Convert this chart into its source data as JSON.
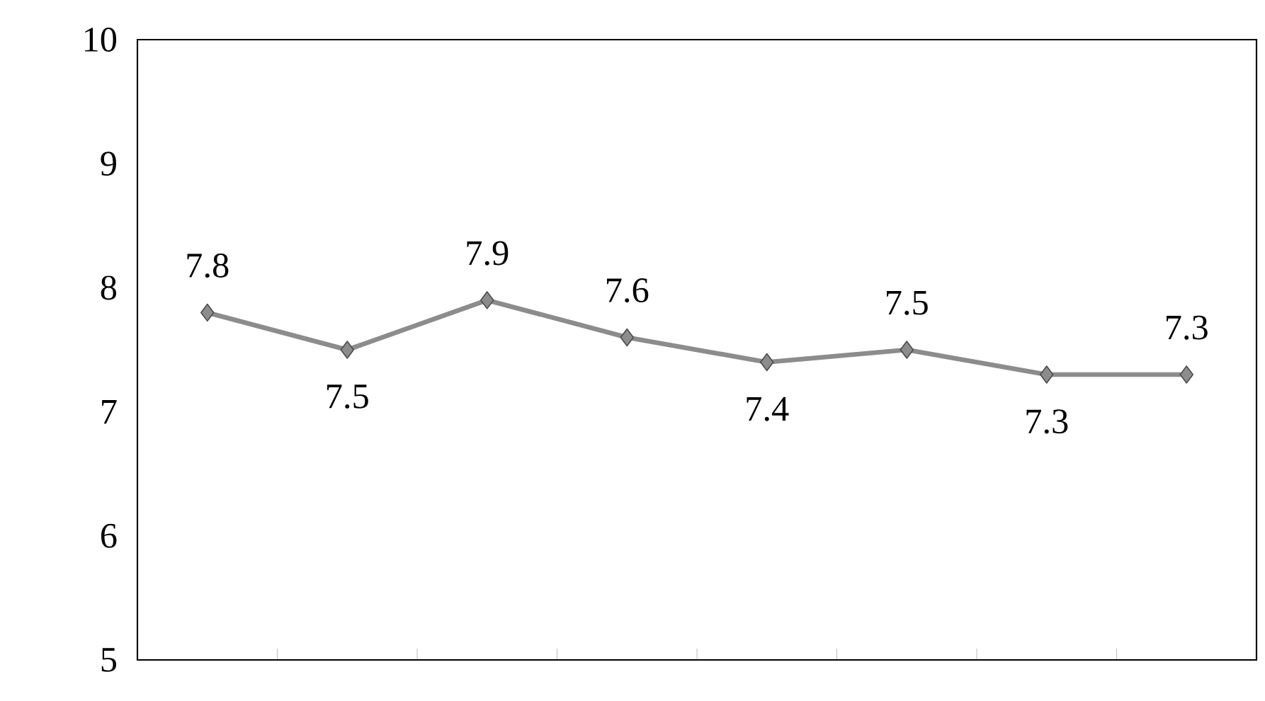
{
  "chart_data": {
    "type": "line",
    "categories": [
      null,
      null,
      null,
      null,
      null,
      null,
      null,
      null
    ],
    "values": [
      7.8,
      7.5,
      7.9,
      7.6,
      7.4,
      7.5,
      7.3,
      7.3
    ],
    "color": "#8c8c8c",
    "ylim": [
      5,
      10
    ],
    "yticks": [
      5,
      6,
      7,
      8,
      9,
      10
    ],
    "marker": "diamond",
    "line_style": "solid",
    "data_labels": true,
    "grid": false,
    "tick_labels": "y"
  }
}
